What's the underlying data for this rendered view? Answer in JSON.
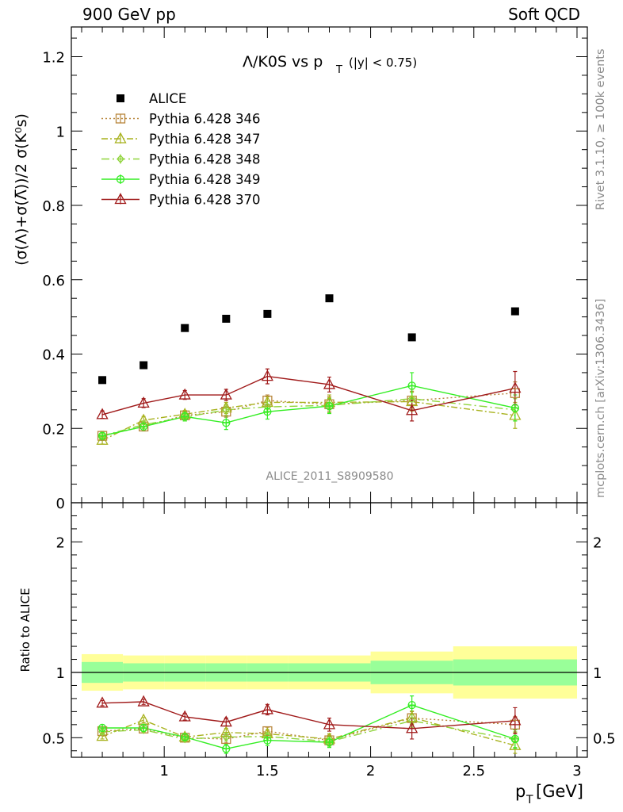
{
  "header": {
    "left": "900 GeV pp",
    "right": "Soft QCD"
  },
  "side_labels": {
    "rivet": "Rivet 3.1.10, ≥ 100k events",
    "mcplots": "mcplots.cern.ch [arXiv:1306.3436]"
  },
  "chart_data": [
    {
      "type": "scatter",
      "title": "Λ/K0S vs p",
      "title_sub": "T",
      "title_cut": "(|y| < 0.75)",
      "watermark": "ALICE_2011_S8909580",
      "ylabel": "(σ(Λ)+σ(Λ̅))/2 σ(K⁰s)",
      "ylim": [
        0,
        1.28
      ],
      "xlim": [
        0.55,
        3.05
      ],
      "yticks": [
        0,
        0.2,
        0.4,
        0.6,
        0.8,
        1,
        1.2
      ],
      "ytick_labels": [
        "0",
        "0.2",
        "0.4",
        "0.6",
        "0.8",
        "1",
        "1.2"
      ],
      "x": [
        0.7,
        0.9,
        1.1,
        1.3,
        1.5,
        1.8,
        2.2,
        2.7
      ],
      "series": [
        {
          "name": "ALICE",
          "color": "#000000",
          "marker": "square-filled",
          "values": [
            0.33,
            0.37,
            0.47,
            0.495,
            0.508,
            0.55,
            0.445,
            0.515
          ]
        },
        {
          "name": "Pythia 6.428 346",
          "color": "#b8863b",
          "marker": "square-open",
          "dash": "2,3",
          "values": [
            0.18,
            0.205,
            0.235,
            0.245,
            0.275,
            0.265,
            0.275,
            0.295
          ],
          "errors": [
            0.01,
            0.01,
            0.01,
            0.015,
            0.015,
            0.02,
            0.025,
            0.03
          ]
        },
        {
          "name": "Pythia 6.428 347",
          "color": "#a8b21e",
          "marker": "triangle-open",
          "dash": "8,3,2,3",
          "values": [
            0.168,
            0.222,
            0.238,
            0.255,
            0.27,
            0.27,
            0.272,
            0.235
          ],
          "errors": [
            0.01,
            0.01,
            0.01,
            0.015,
            0.015,
            0.02,
            0.025,
            0.035
          ]
        },
        {
          "name": "Pythia 6.428 348",
          "color": "#8fd43b",
          "marker": "diamond-open",
          "dash": "10,4,2,4",
          "values": [
            0.18,
            0.21,
            0.23,
            0.25,
            0.258,
            0.262,
            0.28,
            0.25
          ],
          "errors": [
            0.01,
            0.01,
            0.01,
            0.015,
            0.015,
            0.02,
            0.025,
            0.03
          ]
        },
        {
          "name": "Pythia 6.428 349",
          "color": "#33ee22",
          "marker": "cross-circle",
          "dash": "",
          "values": [
            0.18,
            0.205,
            0.232,
            0.215,
            0.245,
            0.26,
            0.315,
            0.255
          ],
          "errors": [
            0.012,
            0.012,
            0.012,
            0.018,
            0.02,
            0.02,
            0.035,
            0.035
          ]
        },
        {
          "name": "Pythia 6.428 370",
          "color": "#a01a1a",
          "marker": "triangle-open",
          "dash": "",
          "values": [
            0.237,
            0.268,
            0.29,
            0.29,
            0.34,
            0.318,
            0.248,
            0.308
          ],
          "errors": [
            0.01,
            0.012,
            0.012,
            0.015,
            0.02,
            0.02,
            0.028,
            0.045
          ]
        }
      ]
    },
    {
      "type": "scatter",
      "ylabel": "Ratio to ALICE",
      "xlabel": "p",
      "xlabel_sub": "T",
      "xlabel_unit": "[GeV]",
      "ylim": [
        0.35,
        2.3
      ],
      "xlim": [
        0.55,
        3.05
      ],
      "xticks": [
        1,
        1.5,
        2,
        2.5,
        3
      ],
      "xtick_labels": [
        "1",
        "1.5",
        "2",
        "2.5",
        "3"
      ],
      "yticks": [
        0.5,
        1,
        2
      ],
      "ytick_labels": [
        "0.5",
        "1",
        "2"
      ],
      "x": [
        0.7,
        0.9,
        1.1,
        1.3,
        1.5,
        1.8,
        2.2,
        2.7
      ],
      "bands": {
        "edges": [
          [
            0.6,
            0.8
          ],
          [
            0.8,
            1.0
          ],
          [
            1.0,
            1.2
          ],
          [
            1.2,
            1.4
          ],
          [
            1.4,
            1.6
          ],
          [
            1.6,
            2.0
          ],
          [
            2.0,
            2.4
          ],
          [
            2.4,
            3.0
          ]
        ],
        "stat": [
          0.08,
          0.07,
          0.07,
          0.07,
          0.07,
          0.07,
          0.09,
          0.1
        ],
        "total": [
          0.14,
          0.13,
          0.13,
          0.13,
          0.13,
          0.13,
          0.16,
          0.2
        ],
        "stat_color": "#99ff99",
        "total_color": "#ffff99"
      },
      "series": [
        {
          "name": "Pythia 6.428 346",
          "color": "#b8863b",
          "marker": "square-open",
          "dash": "2,3",
          "values": [
            0.55,
            0.57,
            0.5,
            0.49,
            0.55,
            0.48,
            0.65,
            0.6
          ],
          "errors": [
            0.02,
            0.02,
            0.02,
            0.03,
            0.03,
            0.04,
            0.05,
            0.06
          ]
        },
        {
          "name": "Pythia 6.428 347",
          "color": "#a8b21e",
          "marker": "triangle-open",
          "dash": "8,3,2,3",
          "values": [
            0.51,
            0.635,
            0.505,
            0.54,
            0.53,
            0.49,
            0.655,
            0.44
          ],
          "errors": [
            0.02,
            0.02,
            0.02,
            0.03,
            0.03,
            0.04,
            0.05,
            0.06
          ]
        },
        {
          "name": "Pythia 6.428 348",
          "color": "#8fd43b",
          "marker": "diamond-open",
          "dash": "10,4,2,4",
          "values": [
            0.545,
            0.56,
            0.49,
            0.505,
            0.51,
            0.47,
            0.63,
            0.485
          ],
          "errors": [
            0.02,
            0.02,
            0.02,
            0.03,
            0.03,
            0.04,
            0.05,
            0.06
          ]
        },
        {
          "name": "Pythia 6.428 349",
          "color": "#33ee22",
          "marker": "cross-circle",
          "dash": "",
          "values": [
            0.575,
            0.575,
            0.505,
            0.415,
            0.48,
            0.465,
            0.75,
            0.49
          ],
          "errors": [
            0.025,
            0.025,
            0.025,
            0.035,
            0.04,
            0.04,
            0.07,
            0.07
          ]
        },
        {
          "name": "Pythia 6.428 370",
          "color": "#a01a1a",
          "marker": "triangle-open",
          "dash": "",
          "values": [
            0.765,
            0.775,
            0.66,
            0.62,
            0.715,
            0.6,
            0.57,
            0.63
          ],
          "errors": [
            0.02,
            0.02,
            0.025,
            0.03,
            0.04,
            0.05,
            0.08,
            0.1
          ]
        }
      ]
    }
  ]
}
